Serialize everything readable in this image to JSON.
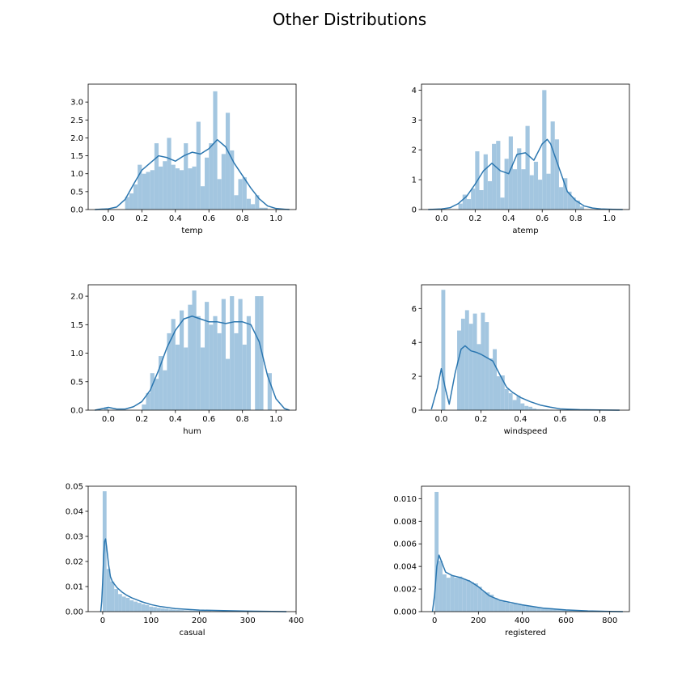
{
  "title": "Other Distributions",
  "colors": {
    "hist": "#a3c6e0",
    "kde": "#2c77b0",
    "axis": "#000000"
  },
  "chart_data": [
    {
      "type": "histogram-kde",
      "xlabel": "temp",
      "xlim": [
        -0.12,
        1.12
      ],
      "ylim": [
        0,
        3.5
      ],
      "xticks": [
        0.0,
        0.2,
        0.4,
        0.6,
        0.8,
        1.0
      ],
      "xtick_labels": [
        "0.0",
        "0.2",
        "0.4",
        "0.6",
        "0.8",
        "1.0"
      ],
      "yticks": [
        0.0,
        0.5,
        1.0,
        1.5,
        2.0,
        2.5,
        3.0
      ],
      "ytick_labels": [
        "0.0",
        "0.5",
        "1.0",
        "1.5",
        "2.0",
        "2.5",
        "3.0"
      ],
      "bins": [
        0.1,
        0.125,
        0.15,
        0.175,
        0.2,
        0.225,
        0.25,
        0.275,
        0.3,
        0.325,
        0.35,
        0.375,
        0.4,
        0.425,
        0.45,
        0.475,
        0.5,
        0.525,
        0.55,
        0.575,
        0.6,
        0.625,
        0.65,
        0.675,
        0.7,
        0.725,
        0.75,
        0.775,
        0.8,
        0.825,
        0.85,
        0.875,
        0.9,
        0.925,
        0.95
      ],
      "counts": [
        0.35,
        0.45,
        0.7,
        1.25,
        1.0,
        1.05,
        1.1,
        1.85,
        1.2,
        1.35,
        2.0,
        1.25,
        1.15,
        1.1,
        1.85,
        1.15,
        1.2,
        2.45,
        0.65,
        1.45,
        1.85,
        3.3,
        0.85,
        1.55,
        2.7,
        1.65,
        0.4,
        0.85,
        0.9,
        0.3,
        0.15,
        0.4,
        0.05,
        0.05
      ],
      "kde": {
        "x": [
          -0.08,
          0.0,
          0.05,
          0.1,
          0.15,
          0.2,
          0.25,
          0.3,
          0.35,
          0.4,
          0.45,
          0.5,
          0.55,
          0.6,
          0.65,
          0.7,
          0.75,
          0.8,
          0.85,
          0.9,
          0.95,
          1.0,
          1.05,
          1.08
        ],
        "y": [
          0.0,
          0.02,
          0.07,
          0.28,
          0.7,
          1.1,
          1.3,
          1.5,
          1.45,
          1.35,
          1.5,
          1.6,
          1.55,
          1.7,
          1.95,
          1.75,
          1.3,
          0.95,
          0.6,
          0.3,
          0.1,
          0.03,
          0.01,
          0.0
        ]
      }
    },
    {
      "type": "histogram-kde",
      "xlabel": "atemp",
      "xlim": [
        -0.12,
        1.12
      ],
      "ylim": [
        0,
        4.2
      ],
      "xticks": [
        0.0,
        0.2,
        0.4,
        0.6,
        0.8,
        1.0
      ],
      "xtick_labels": [
        "0.0",
        "0.2",
        "0.4",
        "0.6",
        "0.8",
        "1.0"
      ],
      "yticks": [
        0,
        1,
        2,
        3,
        4
      ],
      "ytick_labels": [
        "0",
        "1",
        "2",
        "3",
        "4"
      ],
      "bins": [
        0.1,
        0.125,
        0.15,
        0.175,
        0.2,
        0.225,
        0.25,
        0.275,
        0.3,
        0.325,
        0.35,
        0.375,
        0.4,
        0.425,
        0.45,
        0.475,
        0.5,
        0.525,
        0.55,
        0.575,
        0.6,
        0.625,
        0.65,
        0.675,
        0.7,
        0.725,
        0.75,
        0.775,
        0.8,
        0.825,
        0.85
      ],
      "counts": [
        0.2,
        0.5,
        0.35,
        0.7,
        1.95,
        0.65,
        1.85,
        0.95,
        2.2,
        2.3,
        0.4,
        1.7,
        2.45,
        1.35,
        2.05,
        1.35,
        2.8,
        1.15,
        1.6,
        1.0,
        4.0,
        1.2,
        2.95,
        2.35,
        0.75,
        1.05,
        0.6,
        0.4,
        0.3,
        0.1
      ],
      "kde": {
        "x": [
          -0.08,
          0.0,
          0.05,
          0.1,
          0.15,
          0.2,
          0.25,
          0.3,
          0.35,
          0.4,
          0.45,
          0.5,
          0.55,
          0.6,
          0.63,
          0.65,
          0.7,
          0.75,
          0.8,
          0.85,
          0.9,
          0.95,
          1.0,
          1.08
        ],
        "y": [
          0.0,
          0.02,
          0.06,
          0.2,
          0.45,
          0.85,
          1.3,
          1.55,
          1.3,
          1.2,
          1.85,
          1.9,
          1.65,
          2.2,
          2.35,
          2.2,
          1.4,
          0.6,
          0.3,
          0.12,
          0.05,
          0.02,
          0.01,
          0.0
        ]
      }
    },
    {
      "type": "histogram-kde",
      "xlabel": "hum",
      "xlim": [
        -0.12,
        1.12
      ],
      "ylim": [
        0,
        2.2
      ],
      "xticks": [
        0.0,
        0.2,
        0.4,
        0.6,
        0.8,
        1.0
      ],
      "xtick_labels": [
        "0.0",
        "0.2",
        "0.4",
        "0.6",
        "0.8",
        "1.0"
      ],
      "yticks": [
        0.0,
        0.5,
        1.0,
        1.5,
        2.0
      ],
      "ytick_labels": [
        "0.0",
        "0.5",
        "1.0",
        "1.5",
        "2.0"
      ],
      "bins": [
        -0.025,
        0.0,
        0.025,
        0.05,
        0.075,
        0.1,
        0.125,
        0.15,
        0.175,
        0.2,
        0.225,
        0.25,
        0.275,
        0.3,
        0.325,
        0.35,
        0.375,
        0.4,
        0.425,
        0.45,
        0.475,
        0.5,
        0.525,
        0.55,
        0.575,
        0.6,
        0.625,
        0.65,
        0.675,
        0.7,
        0.725,
        0.75,
        0.775,
        0.8,
        0.825,
        0.85,
        0.875,
        0.9,
        0.925,
        0.95,
        0.975,
        1.0
      ],
      "counts": [
        0.05,
        0.0,
        0.0,
        0.0,
        0.0,
        0.0,
        0.0,
        0.0,
        0.0,
        0.1,
        0.3,
        0.65,
        0.55,
        0.95,
        0.7,
        1.35,
        1.6,
        1.15,
        1.75,
        1.1,
        1.85,
        2.1,
        1.65,
        1.1,
        1.9,
        1.5,
        1.65,
        1.35,
        1.95,
        0.9,
        2.0,
        1.35,
        1.95,
        1.15,
        1.65,
        0.0,
        2.0,
        2.0,
        0.0,
        0.65,
        0.0
      ],
      "kde": {
        "x": [
          -0.08,
          -0.03,
          0.0,
          0.05,
          0.1,
          0.15,
          0.2,
          0.25,
          0.3,
          0.35,
          0.4,
          0.45,
          0.5,
          0.55,
          0.6,
          0.65,
          0.7,
          0.75,
          0.8,
          0.85,
          0.9,
          0.95,
          1.0,
          1.05,
          1.08
        ],
        "y": [
          0.0,
          0.03,
          0.05,
          0.02,
          0.02,
          0.06,
          0.15,
          0.35,
          0.7,
          1.1,
          1.4,
          1.6,
          1.65,
          1.6,
          1.55,
          1.55,
          1.52,
          1.55,
          1.55,
          1.5,
          1.2,
          0.6,
          0.2,
          0.03,
          0.0
        ]
      }
    },
    {
      "type": "histogram-kde",
      "xlabel": "windspeed",
      "xlim": [
        -0.1,
        0.95
      ],
      "ylim": [
        0,
        7.4
      ],
      "xticks": [
        0.0,
        0.2,
        0.4,
        0.6,
        0.8
      ],
      "xtick_labels": [
        "0.0",
        "0.2",
        "0.4",
        "0.6",
        "0.8"
      ],
      "yticks": [
        0,
        2,
        4,
        6
      ],
      "ytick_labels": [
        "0",
        "2",
        "4",
        "6"
      ],
      "bins": [
        0.0,
        0.02,
        0.04,
        0.06,
        0.08,
        0.1,
        0.12,
        0.14,
        0.16,
        0.18,
        0.2,
        0.22,
        0.24,
        0.26,
        0.28,
        0.3,
        0.32,
        0.34,
        0.36,
        0.38,
        0.4,
        0.42,
        0.44,
        0.46,
        0.48,
        0.5,
        0.52,
        0.54,
        0.56,
        0.58,
        0.6,
        0.62,
        0.64,
        0.66,
        0.68,
        0.7,
        0.72,
        0.74,
        0.76,
        0.78,
        0.8,
        0.82,
        0.84,
        0.86
      ],
      "counts": [
        7.1,
        0.0,
        0.0,
        0.0,
        4.7,
        5.4,
        5.9,
        5.1,
        5.7,
        3.9,
        5.75,
        5.2,
        3.05,
        3.6,
        2.0,
        2.05,
        1.25,
        1.0,
        0.6,
        0.85,
        0.4,
        0.25,
        0.2,
        0.1,
        0.06,
        0.05,
        0.04,
        0.03,
        0.02,
        0.02,
        0.01,
        0.01,
        0.01,
        0.01,
        0.01,
        0.0,
        0.0,
        0.0,
        0.0,
        0.0,
        0.0,
        0.0,
        0.0
      ],
      "kde": {
        "x": [
          -0.05,
          -0.02,
          0.0,
          0.02,
          0.04,
          0.07,
          0.1,
          0.12,
          0.15,
          0.18,
          0.2,
          0.23,
          0.26,
          0.3,
          0.33,
          0.36,
          0.4,
          0.45,
          0.5,
          0.55,
          0.6,
          0.7,
          0.8,
          0.9
        ],
        "y": [
          0.05,
          1.3,
          2.45,
          1.3,
          0.35,
          2.2,
          3.6,
          3.8,
          3.5,
          3.4,
          3.3,
          3.1,
          2.9,
          2.0,
          1.35,
          1.05,
          0.75,
          0.5,
          0.3,
          0.18,
          0.08,
          0.03,
          0.01,
          0.0
        ]
      }
    },
    {
      "type": "histogram-kde",
      "xlabel": "casual",
      "xlim": [
        -30,
        400
      ],
      "ylim": [
        0,
        0.05
      ],
      "xticks": [
        0,
        100,
        200,
        300,
        400
      ],
      "xtick_labels": [
        "0",
        "100",
        "200",
        "300",
        "400"
      ],
      "yticks": [
        0.0,
        0.01,
        0.02,
        0.03,
        0.04,
        0.05
      ],
      "ytick_labels": [
        "0.00",
        "0.01",
        "0.02",
        "0.03",
        "0.04",
        "0.05"
      ],
      "bins": [
        0,
        8,
        16,
        24,
        32,
        40,
        48,
        56,
        64,
        72,
        80,
        88,
        96,
        104,
        112,
        120,
        128,
        136,
        144,
        152,
        160,
        168,
        176,
        184,
        192,
        200,
        208,
        216,
        224,
        232,
        240,
        248,
        256,
        264,
        272,
        280,
        288,
        296,
        304,
        312,
        320,
        328,
        336,
        344,
        352,
        360,
        368,
        376
      ],
      "counts": [
        0.048,
        0.017,
        0.012,
        0.009,
        0.007,
        0.006,
        0.0055,
        0.0045,
        0.004,
        0.0035,
        0.003,
        0.0026,
        0.002,
        0.0018,
        0.0015,
        0.0013,
        0.0011,
        0.0009,
        0.0008,
        0.0007,
        0.0006,
        0.0005,
        0.0005,
        0.0004,
        0.0004,
        0.0003,
        0.0003,
        0.0003,
        0.0002,
        0.0002,
        0.0002,
        0.0002,
        0.0001,
        0.0001,
        0.0001,
        0.0001,
        0.0001,
        0.0001,
        0.0001,
        5e-05,
        5e-05,
        5e-05,
        5e-05,
        5e-05,
        5e-05,
        5e-05,
        5e-05
      ],
      "kde": {
        "x": [
          -4,
          -2,
          0,
          2,
          4,
          6,
          8,
          12,
          16,
          20,
          30,
          40,
          50,
          60,
          80,
          100,
          120,
          150,
          200,
          250,
          300,
          350,
          380
        ],
        "y": [
          0.0,
          0.004,
          0.012,
          0.022,
          0.028,
          0.029,
          0.026,
          0.019,
          0.014,
          0.012,
          0.0095,
          0.0078,
          0.0065,
          0.0055,
          0.004,
          0.0028,
          0.002,
          0.0012,
          0.0006,
          0.0004,
          0.0002,
          0.0001,
          0.0
        ]
      }
    },
    {
      "type": "histogram-kde",
      "xlabel": "registered",
      "xlim": [
        -60,
        890
      ],
      "ylim": [
        0,
        0.0111
      ],
      "xticks": [
        0,
        200,
        400,
        600,
        800
      ],
      "xtick_labels": [
        "0",
        "200",
        "400",
        "600",
        "800"
      ],
      "yticks": [
        0.0,
        0.002,
        0.004,
        0.006,
        0.008,
        0.01
      ],
      "ytick_labels": [
        "0.000",
        "0.002",
        "0.004",
        "0.006",
        "0.008",
        "0.010"
      ],
      "bins": [
        0,
        18,
        36,
        54,
        72,
        90,
        108,
        126,
        144,
        162,
        180,
        198,
        216,
        234,
        252,
        270,
        288,
        306,
        324,
        342,
        360,
        378,
        396,
        414,
        432,
        450,
        468,
        486,
        504,
        522,
        540,
        558,
        576,
        594,
        612,
        630,
        648,
        666,
        684,
        702,
        720,
        738,
        756,
        774,
        792,
        810,
        828,
        846
      ],
      "counts": [
        0.0106,
        0.0045,
        0.0033,
        0.003,
        0.0032,
        0.003,
        0.0031,
        0.0029,
        0.0028,
        0.0026,
        0.0025,
        0.0022,
        0.0018,
        0.0017,
        0.0015,
        0.0012,
        0.001,
        0.0009,
        0.0008,
        0.0007,
        0.0007,
        0.0006,
        0.0006,
        0.0005,
        0.0005,
        0.0004,
        0.0004,
        0.0003,
        0.0003,
        0.0003,
        0.0002,
        0.0002,
        0.0002,
        0.00015,
        0.00012,
        0.0001,
        0.0001,
        0.0001,
        8e-05,
        8e-05,
        6e-05,
        5e-05,
        5e-05,
        4e-05,
        3e-05,
        2e-05,
        2e-05
      ],
      "kde": {
        "x": [
          -10,
          0,
          10,
          20,
          30,
          50,
          80,
          120,
          160,
          200,
          250,
          300,
          350,
          400,
          500,
          600,
          700,
          800,
          860
        ],
        "y": [
          0.0,
          0.0015,
          0.004,
          0.005,
          0.0045,
          0.0035,
          0.0032,
          0.003,
          0.0027,
          0.0022,
          0.0014,
          0.001,
          0.0008,
          0.0006,
          0.0003,
          0.00015,
          6e-05,
          2e-05,
          0.0
        ]
      }
    }
  ]
}
